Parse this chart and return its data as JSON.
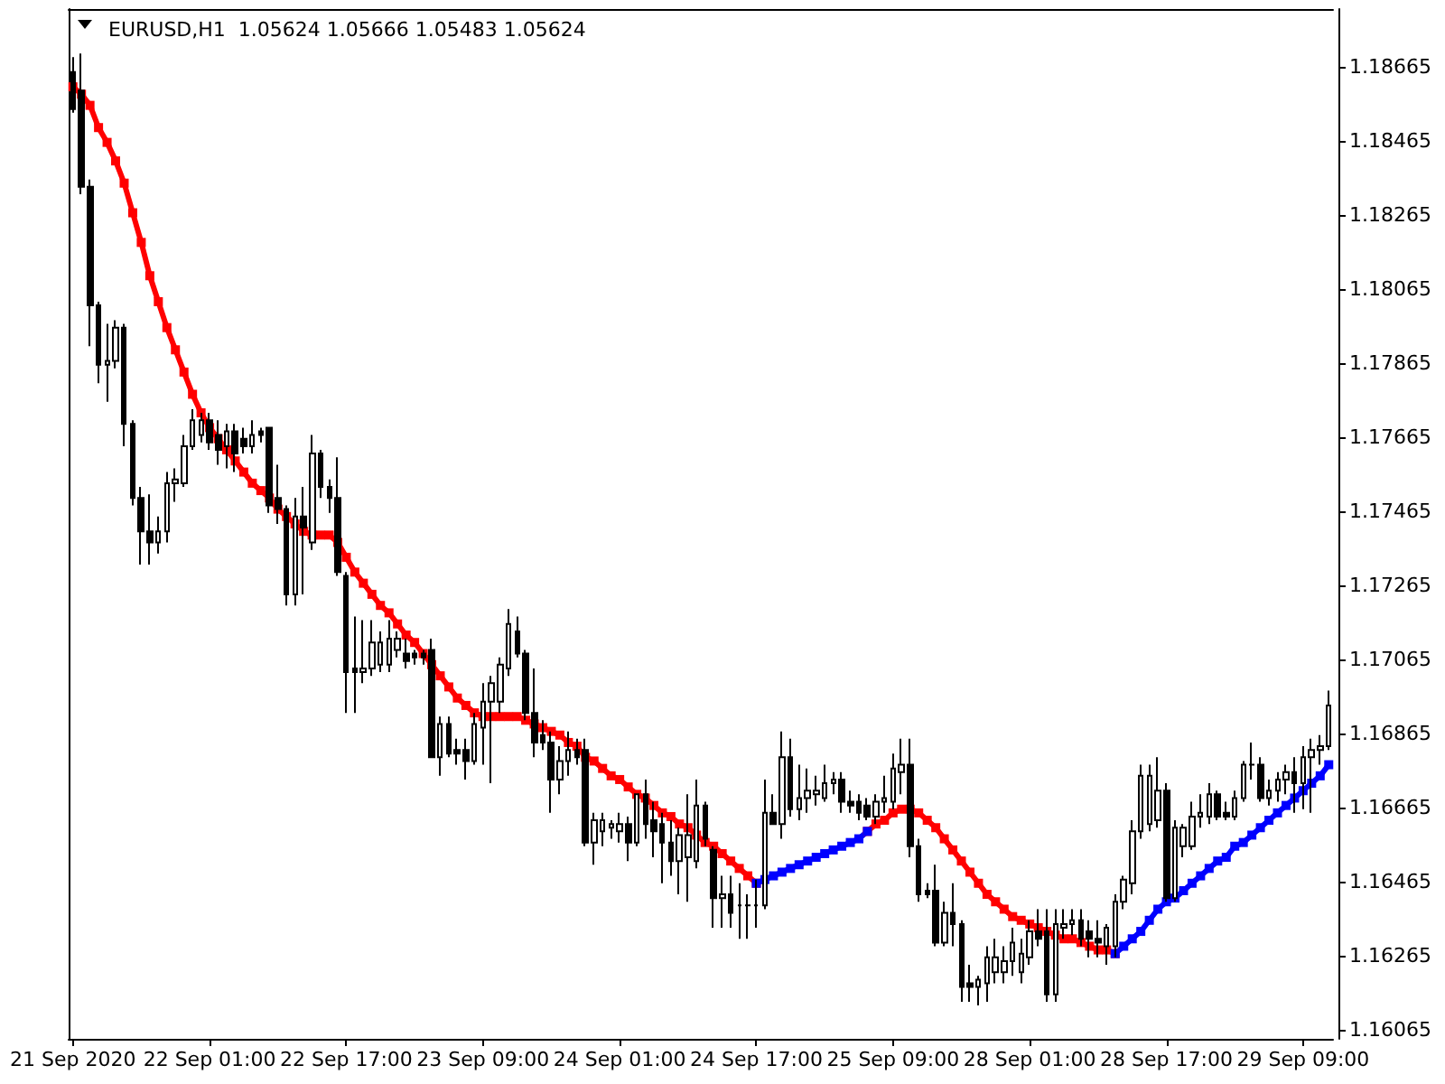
{
  "chart_data": {
    "type": "candlestick",
    "title": "EURUSD,H1  1.05624 1.05666 1.05483 1.05624",
    "categories": [
      "21 Sep 2020",
      null,
      null,
      null,
      null,
      null,
      null,
      null,
      null,
      null,
      null,
      null,
      null,
      null,
      null,
      null,
      "22 Sep 01:00",
      null,
      null,
      null,
      null,
      null,
      null,
      null,
      null,
      null,
      null,
      null,
      null,
      null,
      null,
      null,
      "22 Sep 17:00",
      null,
      null,
      null,
      null,
      null,
      null,
      null,
      null,
      null,
      null,
      null,
      null,
      null,
      null,
      null,
      "23 Sep 09:00",
      null,
      null,
      null,
      null,
      null,
      null,
      null,
      null,
      null,
      null,
      null,
      null,
      null,
      null,
      null,
      "24 Sep 01:00",
      null,
      null,
      null,
      null,
      null,
      null,
      null,
      null,
      null,
      null,
      null,
      null,
      null,
      null,
      null,
      "24 Sep 17:00",
      null,
      null,
      null,
      null,
      null,
      null,
      null,
      null,
      null,
      null,
      null,
      null,
      null,
      null,
      null,
      "25 Sep 09:00",
      null,
      null,
      null,
      null,
      null,
      null,
      null,
      null,
      null,
      null,
      null,
      null,
      null,
      null,
      null,
      "28 Sep 01:00",
      null,
      null,
      null,
      null,
      null,
      null,
      null,
      null,
      null,
      null,
      null,
      null,
      null,
      null,
      null,
      "28 Sep 17:00",
      null,
      null,
      null,
      null,
      null,
      null,
      null,
      null,
      null,
      null,
      null,
      null,
      null,
      null,
      null,
      "29 Sep 09:00",
      null,
      null,
      null
    ],
    "series": [
      {
        "color": "#000000",
        "ohlc": [
          [
            1.1865,
            1.1869,
            1.1854,
            1.1855
          ],
          [
            1.186,
            1.187,
            1.1832,
            1.1834
          ],
          [
            1.1834,
            1.1836,
            1.1791,
            1.1802
          ],
          [
            1.1802,
            1.1803,
            1.1781,
            1.1786
          ],
          [
            1.1786,
            1.1797,
            1.1776,
            1.1787
          ],
          [
            1.1787,
            1.1798,
            1.1785,
            1.1796
          ],
          [
            1.1796,
            1.1797,
            1.1764,
            1.177
          ],
          [
            1.177,
            1.1771,
            1.1748,
            1.175
          ],
          [
            1.175,
            1.1753,
            1.1732,
            1.1741
          ],
          [
            1.1741,
            1.1751,
            1.1732,
            1.1738
          ],
          [
            1.1738,
            1.1745,
            1.1735,
            1.1741
          ],
          [
            1.1741,
            1.1757,
            1.1738,
            1.1754
          ],
          [
            1.1754,
            1.1758,
            1.1749,
            1.1755
          ],
          [
            1.1754,
            1.1767,
            1.1753,
            1.1764
          ],
          [
            1.1764,
            1.1774,
            1.1763,
            1.1771
          ],
          [
            1.1767,
            1.1773,
            1.1765,
            1.1771
          ],
          [
            1.1771,
            1.1773,
            1.1763,
            1.1765
          ],
          [
            1.1767,
            1.1771,
            1.1759,
            1.1763
          ],
          [
            1.1764,
            1.177,
            1.1758,
            1.1768
          ],
          [
            1.1768,
            1.177,
            1.1757,
            1.1762
          ],
          [
            1.1766,
            1.1769,
            1.1762,
            1.1764
          ],
          [
            1.1764,
            1.1771,
            1.1762,
            1.1767
          ],
          [
            1.1768,
            1.1769,
            1.1765,
            1.1767
          ],
          [
            1.1769,
            1.1769,
            1.1746,
            1.1748
          ],
          [
            1.175,
            1.1759,
            1.1743,
            1.1747
          ],
          [
            1.1747,
            1.1748,
            1.1721,
            1.1724
          ],
          [
            1.1724,
            1.175,
            1.1721,
            1.1745
          ],
          [
            1.1745,
            1.1753,
            1.1724,
            1.1742
          ],
          [
            1.1738,
            1.1767,
            1.1736,
            1.1762
          ],
          [
            1.1762,
            1.1763,
            1.175,
            1.1753
          ],
          [
            1.1753,
            1.1755,
            1.1746,
            1.175
          ],
          [
            1.175,
            1.1761,
            1.1729,
            1.173
          ],
          [
            1.1729,
            1.173,
            1.1692,
            1.1703
          ],
          [
            1.1704,
            1.1718,
            1.1692,
            1.1703
          ],
          [
            1.1703,
            1.1717,
            1.17,
            1.1704
          ],
          [
            1.1704,
            1.1717,
            1.1702,
            1.1711
          ],
          [
            1.1705,
            1.1714,
            1.1703,
            1.1711
          ],
          [
            1.1705,
            1.1717,
            1.1703,
            1.1712
          ],
          [
            1.1709,
            1.1714,
            1.1707,
            1.1712
          ],
          [
            1.1708,
            1.1712,
            1.1704,
            1.1706
          ],
          [
            1.1708,
            1.1709,
            1.1705,
            1.1707
          ],
          [
            1.1708,
            1.1709,
            1.1705,
            1.1707
          ],
          [
            1.1709,
            1.1712,
            1.168,
            1.168
          ],
          [
            1.168,
            1.1691,
            1.1675,
            1.1689
          ],
          [
            1.1689,
            1.1691,
            1.168,
            1.1681
          ],
          [
            1.1682,
            1.1685,
            1.1678,
            1.1681
          ],
          [
            1.1682,
            1.1685,
            1.1674,
            1.1679
          ],
          [
            1.1679,
            1.1692,
            1.1678,
            1.1689
          ],
          [
            1.1688,
            1.17,
            1.1678,
            1.1695
          ],
          [
            1.1695,
            1.1702,
            1.1673,
            1.17
          ],
          [
            1.1695,
            1.1707,
            1.1692,
            1.1705
          ],
          [
            1.1704,
            1.172,
            1.1702,
            1.1716
          ],
          [
            1.1714,
            1.1718,
            1.1707,
            1.1708
          ],
          [
            1.1708,
            1.1709,
            1.169,
            1.1692
          ],
          [
            1.1692,
            1.1704,
            1.168,
            1.1684
          ],
          [
            1.1686,
            1.169,
            1.1682,
            1.1684
          ],
          [
            1.1684,
            1.1687,
            1.1665,
            1.1674
          ],
          [
            1.1674,
            1.1683,
            1.167,
            1.1679
          ],
          [
            1.1679,
            1.1687,
            1.1675,
            1.1682
          ],
          [
            1.1682,
            1.1685,
            1.1678,
            1.168
          ],
          [
            1.1682,
            1.1685,
            1.1656,
            1.1657
          ],
          [
            1.1657,
            1.1665,
            1.1651,
            1.1663
          ],
          [
            1.166,
            1.1665,
            1.1656,
            1.1663
          ],
          [
            1.1661,
            1.1663,
            1.1658,
            1.1662
          ],
          [
            1.166,
            1.1665,
            1.1657,
            1.1662
          ],
          [
            1.1662,
            1.1664,
            1.1652,
            1.1657
          ],
          [
            1.1657,
            1.167,
            1.1656,
            1.167
          ],
          [
            1.167,
            1.1674,
            1.1658,
            1.1662
          ],
          [
            1.1663,
            1.1668,
            1.1653,
            1.166
          ],
          [
            1.1662,
            1.1665,
            1.1646,
            1.1657
          ],
          [
            1.1657,
            1.1663,
            1.1648,
            1.1652
          ],
          [
            1.1652,
            1.1661,
            1.1643,
            1.1659
          ],
          [
            1.1653,
            1.167,
            1.1641,
            1.1659
          ],
          [
            1.1652,
            1.1674,
            1.165,
            1.1667
          ],
          [
            1.1667,
            1.1668,
            1.1656,
            1.1658
          ],
          [
            1.1655,
            1.1656,
            1.1634,
            1.1642
          ],
          [
            1.1642,
            1.1648,
            1.1634,
            1.1643
          ],
          [
            1.1643,
            1.1648,
            1.1634,
            1.1638
          ],
          [
            1.164,
            1.1646,
            1.1631,
            1.164
          ],
          [
            1.164,
            1.1643,
            1.1631,
            1.164
          ],
          [
            1.164,
            1.1647,
            1.1634,
            1.164
          ],
          [
            1.164,
            1.1674,
            1.1639,
            1.1665
          ],
          [
            1.1665,
            1.167,
            1.1662,
            1.1662
          ],
          [
            1.1662,
            1.1687,
            1.1658,
            1.168
          ],
          [
            1.168,
            1.1685,
            1.1664,
            1.1666
          ],
          [
            1.1666,
            1.1678,
            1.1663,
            1.1669
          ],
          [
            1.1669,
            1.1677,
            1.1665,
            1.1671
          ],
          [
            1.167,
            1.1675,
            1.1667,
            1.1671
          ],
          [
            1.1669,
            1.1678,
            1.1668,
            1.1673
          ],
          [
            1.1673,
            1.1676,
            1.167,
            1.1674
          ],
          [
            1.1674,
            1.1676,
            1.1665,
            1.1668
          ],
          [
            1.1668,
            1.1671,
            1.1665,
            1.1667
          ],
          [
            1.1668,
            1.167,
            1.1663,
            1.1665
          ],
          [
            1.1667,
            1.1669,
            1.1663,
            1.1664
          ],
          [
            1.1664,
            1.167,
            1.1662,
            1.1668
          ],
          [
            1.1668,
            1.1675,
            1.1665,
            1.1669
          ],
          [
            1.1668,
            1.1681,
            1.1666,
            1.1677
          ],
          [
            1.1676,
            1.1685,
            1.167,
            1.1678
          ],
          [
            1.1678,
            1.1685,
            1.1653,
            1.1656
          ],
          [
            1.1656,
            1.1658,
            1.1641,
            1.1643
          ],
          [
            1.1644,
            1.1646,
            1.1642,
            1.1643
          ],
          [
            1.1644,
            1.1651,
            1.1629,
            1.163
          ],
          [
            1.163,
            1.1641,
            1.1629,
            1.1638
          ],
          [
            1.1638,
            1.1646,
            1.1629,
            1.1635
          ],
          [
            1.1635,
            1.1636,
            1.1614,
            1.1618
          ],
          [
            1.1619,
            1.1624,
            1.1614,
            1.1618
          ],
          [
            1.1618,
            1.1621,
            1.1613,
            1.162
          ],
          [
            1.1619,
            1.1629,
            1.1614,
            1.1626
          ],
          [
            1.1622,
            1.1631,
            1.1619,
            1.1626
          ],
          [
            1.1622,
            1.1629,
            1.1619,
            1.1625
          ],
          [
            1.1625,
            1.1634,
            1.1621,
            1.163
          ],
          [
            1.1622,
            1.1631,
            1.1619,
            1.1627
          ],
          [
            1.1626,
            1.1636,
            1.1624,
            1.1633
          ],
          [
            1.1633,
            1.1639,
            1.1629,
            1.1631
          ],
          [
            1.1633,
            1.1639,
            1.1614,
            1.1616
          ],
          [
            1.1616,
            1.1639,
            1.1614,
            1.1635
          ],
          [
            1.1634,
            1.1639,
            1.1631,
            1.1635
          ],
          [
            1.1635,
            1.1639,
            1.1632,
            1.1636
          ],
          [
            1.1636,
            1.1639,
            1.1629,
            1.1631
          ],
          [
            1.1633,
            1.1636,
            1.1626,
            1.1631
          ],
          [
            1.1631,
            1.1636,
            1.1626,
            1.163
          ],
          [
            1.1629,
            1.1635,
            1.1624,
            1.1634
          ],
          [
            1.1629,
            1.1643,
            1.1626,
            1.1641
          ],
          [
            1.1641,
            1.1648,
            1.1639,
            1.1647
          ],
          [
            1.1646,
            1.1663,
            1.1643,
            1.166
          ],
          [
            1.166,
            1.1678,
            1.1658,
            1.1675
          ],
          [
            1.1662,
            1.1678,
            1.166,
            1.1675
          ],
          [
            1.1663,
            1.168,
            1.1661,
            1.1671
          ],
          [
            1.1671,
            1.1673,
            1.1641,
            1.1642
          ],
          [
            1.1642,
            1.1663,
            1.1641,
            1.1661
          ],
          [
            1.1656,
            1.1662,
            1.1653,
            1.1661
          ],
          [
            1.1656,
            1.1668,
            1.1655,
            1.1664
          ],
          [
            1.1664,
            1.167,
            1.1661,
            1.1665
          ],
          [
            1.1664,
            1.1673,
            1.1662,
            1.167
          ],
          [
            1.167,
            1.1671,
            1.1663,
            1.1664
          ],
          [
            1.1665,
            1.1668,
            1.1663,
            1.1664
          ],
          [
            1.1664,
            1.1671,
            1.1663,
            1.1669
          ],
          [
            1.1669,
            1.1679,
            1.1668,
            1.1678
          ],
          [
            1.1678,
            1.1684,
            1.1674,
            1.1678
          ],
          [
            1.1678,
            1.168,
            1.1668,
            1.1669
          ],
          [
            1.1669,
            1.1674,
            1.1667,
            1.1671
          ],
          [
            1.1671,
            1.1676,
            1.1668,
            1.1674
          ],
          [
            1.1674,
            1.1678,
            1.167,
            1.1676
          ],
          [
            1.1676,
            1.168,
            1.1665,
            1.1673
          ],
          [
            1.1673,
            1.1683,
            1.1666,
            1.168
          ],
          [
            1.168,
            1.1685,
            1.1665,
            1.1682
          ],
          [
            1.1682,
            1.1686,
            1.1678,
            1.1683
          ],
          [
            1.1683,
            1.1698,
            1.1682,
            1.1694
          ]
        ]
      },
      {
        "type": "line",
        "color": "#ff0000",
        "values": [
          1.1861,
          1.1859,
          1.1856,
          1.185,
          1.1846,
          1.1841,
          1.1835,
          1.1827,
          1.1819,
          1.181,
          1.1803,
          1.1796,
          1.179,
          1.1784,
          1.1778,
          1.1773,
          1.1769,
          1.1766,
          1.1763,
          1.176,
          1.1757,
          1.1754,
          1.1752,
          1.175,
          1.1747,
          1.1745,
          1.1743,
          1.1741,
          1.174,
          1.174,
          1.174,
          1.1738,
          1.1734,
          1.173,
          1.1727,
          1.1724,
          1.1721,
          1.1719,
          1.1716,
          1.1713,
          1.1711,
          1.1708,
          1.1705,
          1.1702,
          1.1699,
          1.1696,
          1.1694,
          1.1692,
          1.1691,
          1.1691,
          1.1691,
          1.1691,
          1.1691,
          1.169,
          1.1689,
          1.1688,
          1.1687,
          1.1686,
          1.1684,
          1.1683,
          1.168,
          1.1679,
          1.1677,
          1.1675,
          1.1674,
          1.1672,
          1.167,
          1.1669,
          1.1667,
          1.1665,
          1.1664,
          1.1662,
          1.1661,
          1.1659,
          1.1657,
          1.1656,
          1.1654,
          1.1652,
          1.165,
          1.1648,
          1.1646,
          null,
          null,
          null,
          null,
          null,
          null,
          null,
          null,
          null,
          null,
          null,
          null,
          1.166,
          1.1662,
          1.1663,
          1.1665,
          1.1666,
          1.1666,
          1.1665,
          1.1663,
          1.1661,
          1.1658,
          1.1655,
          1.1652,
          1.1649,
          1.1646,
          1.1643,
          1.1641,
          1.1639,
          1.1637,
          1.1636,
          1.1635,
          1.1634,
          1.1633,
          1.1632,
          1.1631,
          1.1631,
          1.163,
          1.1629,
          1.1628,
          1.1628,
          1.1627,
          null,
          null,
          null,
          null,
          null,
          null,
          null,
          null,
          null,
          null,
          null,
          null,
          null,
          null,
          null,
          null,
          null,
          null,
          null,
          null,
          null,
          null,
          null,
          null,
          null
        ]
      },
      {
        "type": "line",
        "color": "#0000ff",
        "values": [
          null,
          null,
          null,
          null,
          null,
          null,
          null,
          null,
          null,
          null,
          null,
          null,
          null,
          null,
          null,
          null,
          null,
          null,
          null,
          null,
          null,
          null,
          null,
          null,
          null,
          null,
          null,
          null,
          null,
          null,
          null,
          null,
          null,
          null,
          null,
          null,
          null,
          null,
          null,
          null,
          null,
          null,
          null,
          null,
          null,
          null,
          null,
          null,
          null,
          null,
          null,
          null,
          null,
          null,
          null,
          null,
          null,
          null,
          null,
          null,
          null,
          null,
          null,
          null,
          null,
          null,
          null,
          null,
          null,
          null,
          null,
          null,
          null,
          null,
          null,
          null,
          null,
          null,
          null,
          null,
          1.1646,
          1.1647,
          1.1648,
          1.1649,
          1.165,
          1.1651,
          1.1652,
          1.1653,
          1.1654,
          1.1655,
          1.1656,
          1.1657,
          1.1658,
          1.166,
          null,
          null,
          null,
          null,
          null,
          null,
          null,
          null,
          null,
          null,
          null,
          null,
          null,
          null,
          null,
          null,
          null,
          null,
          null,
          null,
          null,
          null,
          null,
          null,
          null,
          null,
          null,
          null,
          1.1627,
          1.1629,
          1.1631,
          1.1633,
          1.1636,
          1.1639,
          1.1641,
          1.1642,
          1.1644,
          1.1646,
          1.1648,
          1.165,
          1.1652,
          1.1653,
          1.1656,
          1.1657,
          1.1659,
          1.1661,
          1.1663,
          1.1665,
          1.1667,
          1.1669,
          1.1671,
          1.1673,
          1.1675,
          1.1678
        ]
      }
    ],
    "ylim": [
      1.1604,
      1.1882
    ],
    "yticks": [
      1.16065,
      1.16265,
      1.16465,
      1.16665,
      1.16865,
      1.17065,
      1.17265,
      1.17465,
      1.17665,
      1.17865,
      1.18065,
      1.18265,
      1.18465,
      1.18665
    ],
    "marker": "square"
  }
}
